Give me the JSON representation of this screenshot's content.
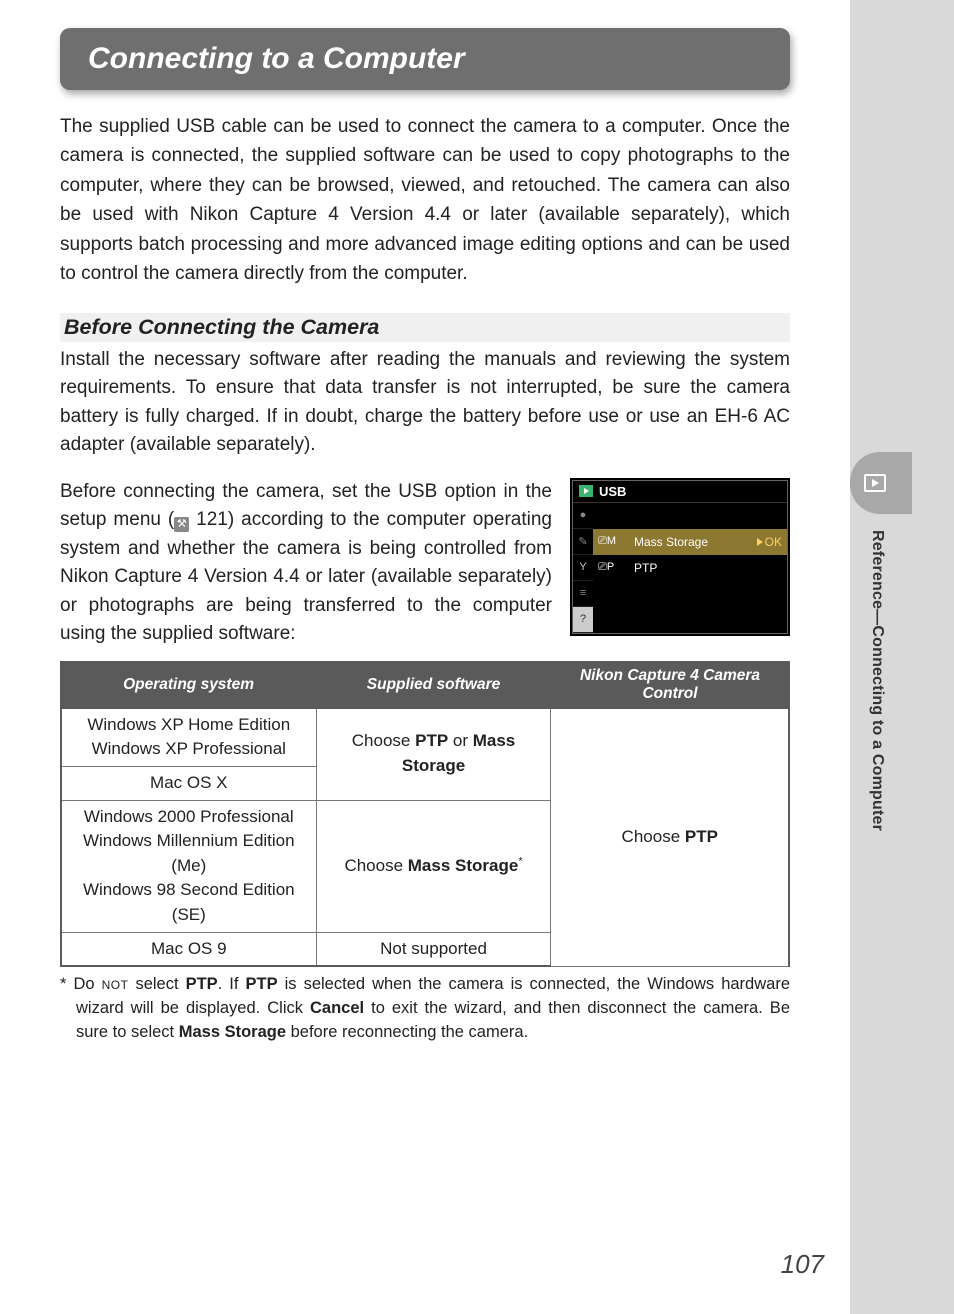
{
  "page_title": "Connecting to a Computer",
  "intro": "The supplied USB cable can be used to connect the camera to a computer. Once the camera is connected, the supplied software can be used to copy photographs to the computer, where they can be browsed, viewed, and retouched. The camera can also be used with Nikon Capture 4 Version 4.4 or later (available separately), which supports batch processing and more advanced image editing options and can be used to control the camera directly from the computer.",
  "subheading": "Before Connecting the Camera",
  "para1": "Install the necessary software after reading the manuals and reviewing the system requirements.  To ensure that data transfer is not interrupted, be sure the camera battery is fully charged.  If in doubt, charge the battery before use or use an EH-6 AC adapter (available separately).",
  "para2_pre": "Before connecting the camera, set the USB option in the setup menu (",
  "para2_pageref": " 121",
  "para2_post": ") according to the computer operating system and whether the camera is being controlled from Nikon Capture 4 Version 4.4 or later (available separately) or photographs are being transferred to the computer using the supplied software:",
  "menu": {
    "title": "USB",
    "items": [
      {
        "prefix_icon": "usb-m",
        "prefix_text": "M",
        "label": "Mass Storage",
        "selected": true
      },
      {
        "prefix_icon": "usb-p",
        "prefix_text": "P",
        "label": "PTP",
        "selected": false
      }
    ],
    "ok_label": "OK",
    "side_icons": [
      "play",
      "dot",
      "pencil",
      "wrench",
      "list",
      "question"
    ],
    "colors": {
      "bg": "#000000",
      "selected_bg": "#8c7830",
      "text": "#ffffff",
      "ok_color": "#ffd060"
    }
  },
  "table": {
    "headers": [
      "Operating system",
      "Supplied software",
      "Nikon Capture 4 Camera Control"
    ],
    "header_bg": "#5a5a5a",
    "header_text_color": "#ffffff",
    "border_color": "#777777",
    "col3_choose_pre": "Choose ",
    "col3_choose_bold": "PTP",
    "rows_group1_os": [
      "Windows XP Home Edition",
      "Windows XP Professional",
      "Mac OS X"
    ],
    "group1_sw_pre": "Choose ",
    "group1_sw_b1": "PTP",
    "group1_sw_mid": " or ",
    "group1_sw_b2": "Mass Storage",
    "rows_group2_os": [
      "Windows 2000 Professional",
      "Windows Millennium Edition (Me)",
      "Windows 98 Second Edition (SE)"
    ],
    "group2_sw_pre": "Choose ",
    "group2_sw_b": "Mass Storage",
    "group2_sw_sup": "*",
    "rows_group3_os": "Mac OS 9",
    "group3_sw": "Not supported"
  },
  "footnote": {
    "marker": "* ",
    "t1": "Do ",
    "sc": "not",
    "t2": " select ",
    "b1": "PTP",
    "t3": ".  If ",
    "b2": "PTP",
    "t4": " is selected when the camera is connected, the Windows hardware wizard will be displayed.  Click ",
    "b3": "Cancel",
    "t5": " to exit the wizard, and then disconnect the camera.  Be sure to select ",
    "b4": "Mass Storage",
    "t6": " before reconnecting the camera."
  },
  "side_tab_text": "Reference—Connecting to a Computer",
  "page_number": "107"
}
